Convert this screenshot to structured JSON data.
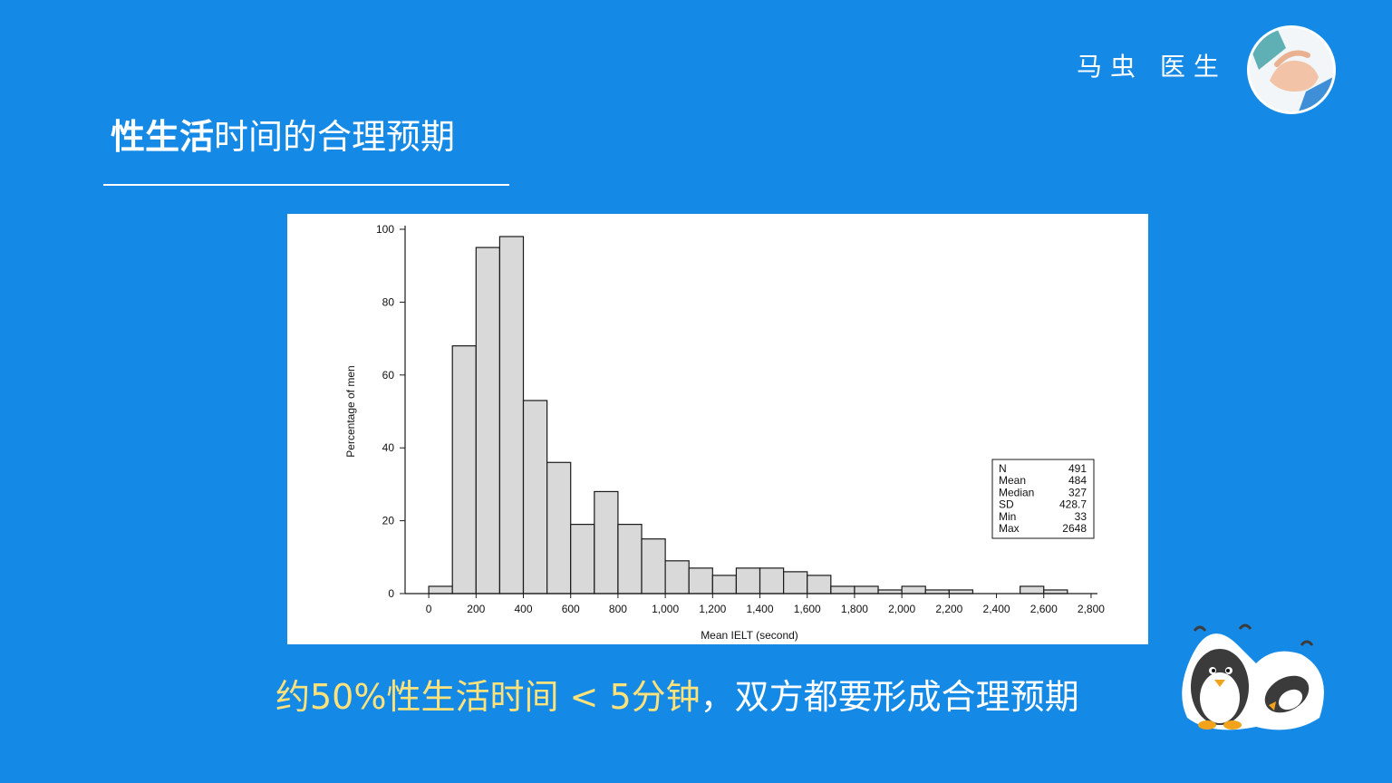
{
  "brand": {
    "name": "马虫 医生"
  },
  "slide": {
    "title_bold": "性生活",
    "title_rest": "时间的合理预期",
    "caption_highlight": "约50%性生活时间 < 5分钟",
    "caption_rest": "，双方都要形成合理预期"
  },
  "icons": {
    "avatar": "doctor-hands-avatar-icon",
    "sticker": "penguin-sticker-icon"
  },
  "colors": {
    "background": "#1589e6",
    "bar_fill": "#d9d9d9",
    "bar_stroke": "#1a1a1a",
    "highlight": "#ffe27a"
  },
  "chart_data": {
    "type": "bar",
    "xlabel": "Mean IELT (second)",
    "ylabel": "Percentage of men",
    "bin_width": 100,
    "bins_start": [
      0,
      100,
      200,
      300,
      400,
      500,
      600,
      700,
      800,
      900,
      1000,
      1100,
      1200,
      1300,
      1400,
      1500,
      1600,
      1700,
      1800,
      1900,
      2000,
      2100,
      2200,
      2300,
      2400,
      2500,
      2600,
      2700
    ],
    "values": [
      2,
      68,
      95,
      98,
      53,
      36,
      19,
      28,
      19,
      15,
      9,
      7,
      5,
      7,
      7,
      6,
      5,
      2,
      2,
      1,
      2,
      1,
      1,
      0,
      0,
      2,
      1,
      0
    ],
    "xlim": [
      -100,
      2850
    ],
    "ylim": [
      0,
      100
    ],
    "x_ticks": [
      0,
      200,
      400,
      600,
      800,
      1000,
      1200,
      1400,
      1600,
      1800,
      2000,
      2200,
      2400,
      2600,
      2800
    ],
    "x_tick_labels": [
      "0",
      "200",
      "400",
      "600",
      "800",
      "1,000",
      "1,200",
      "1,400",
      "1,600",
      "1,800",
      "2,000",
      "2,200",
      "2,400",
      "2,600",
      "2,800"
    ],
    "y_ticks": [
      0,
      20,
      40,
      60,
      80,
      100
    ],
    "y_tick_labels": [
      "0",
      "20",
      "40",
      "60",
      "80",
      "100"
    ],
    "stats_box": [
      {
        "label": "N",
        "value": "491"
      },
      {
        "label": "Mean",
        "value": "484"
      },
      {
        "label": "Median",
        "value": "327"
      },
      {
        "label": "SD",
        "value": "428.7"
      },
      {
        "label": "Min",
        "value": "33"
      },
      {
        "label": "Max",
        "value": "2648"
      }
    ],
    "grid": false
  }
}
